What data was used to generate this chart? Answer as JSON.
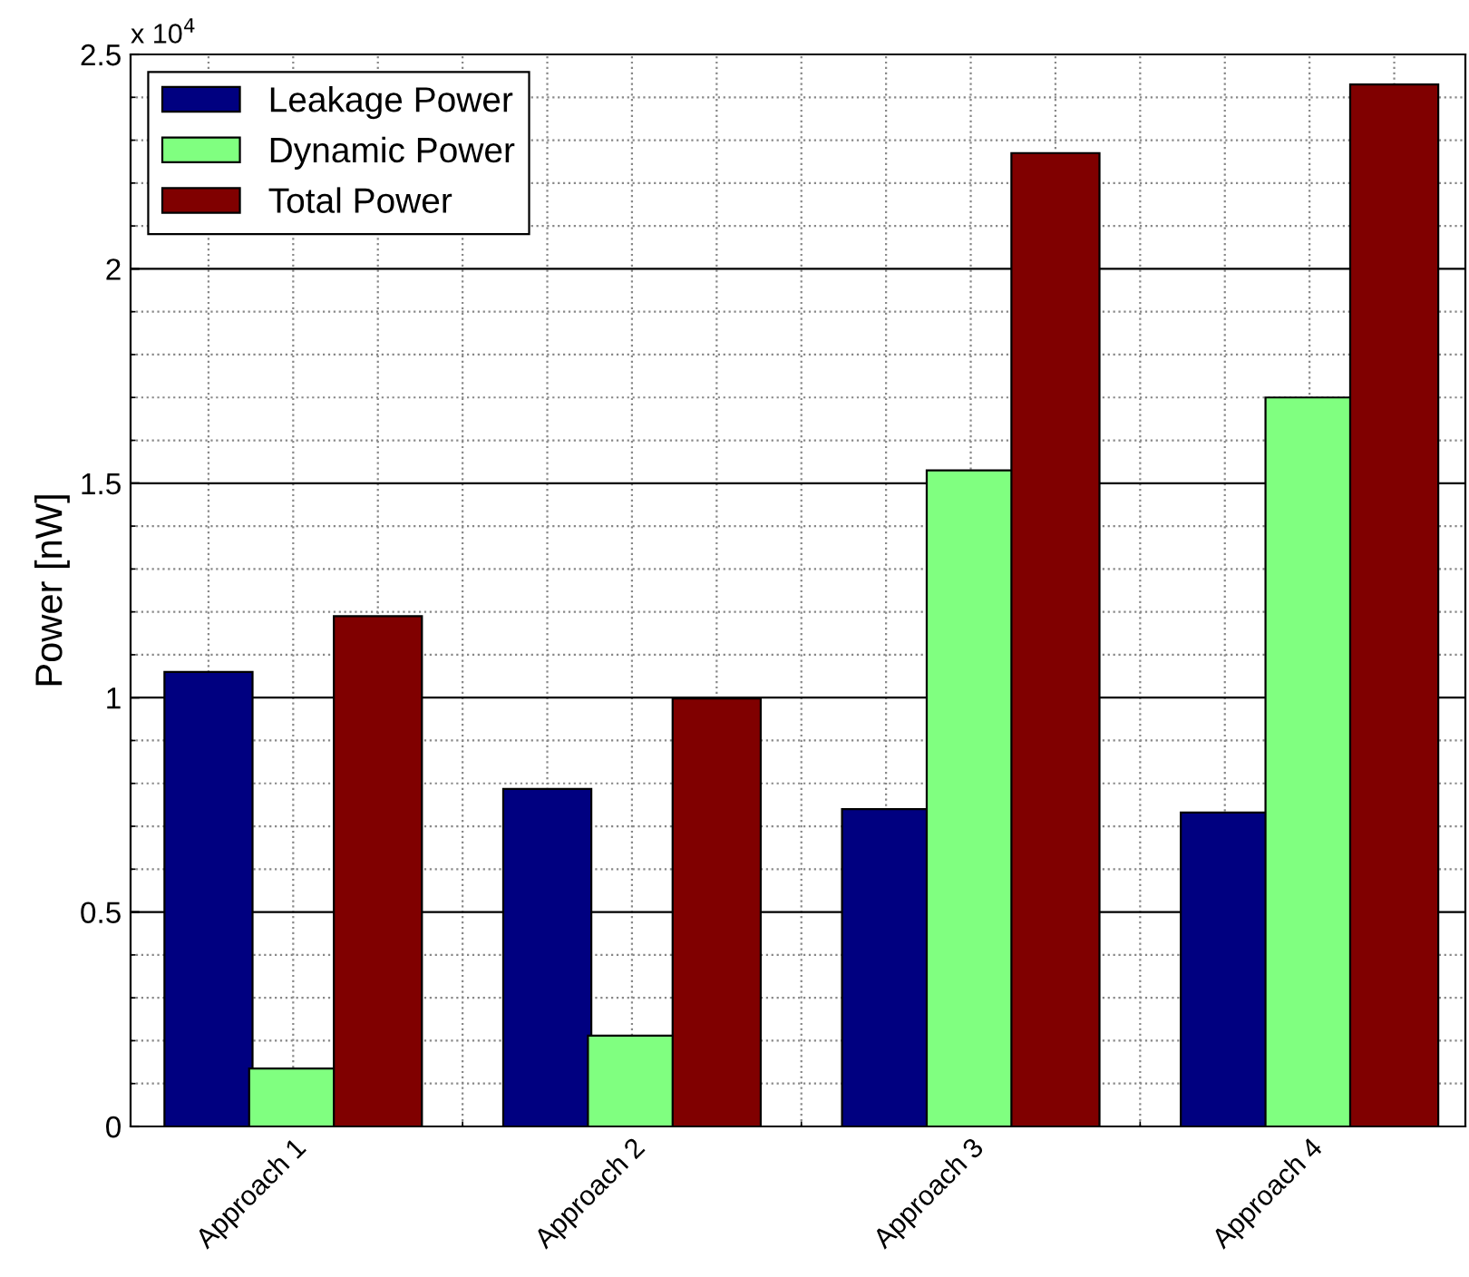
{
  "chart_data": {
    "type": "bar",
    "ylabel": "Power [nW]",
    "annotations": [
      "x 10$^{4}$"
    ],
    "categories": [
      "Approach 1",
      "Approach 2",
      "Approach 3",
      "Approach 4"
    ],
    "series": [
      {
        "name": "Leakage Power",
        "color": "#000080",
        "values": [
          1.06,
          0.787,
          0.74,
          0.732
        ]
      },
      {
        "name": "Dynamic Power",
        "color": "#80ff80",
        "values": [
          0.135,
          0.212,
          1.53,
          1.7
        ]
      },
      {
        "name": "Total Power",
        "color": "#800000",
        "values": [
          1.19,
          0.998,
          2.27,
          2.43
        ]
      }
    ],
    "ylim": [
      0,
      2.5
    ],
    "yticks": [
      0,
      0.5,
      1,
      1.5,
      2,
      2.5
    ],
    "grid": true,
    "legend": "top left"
  }
}
